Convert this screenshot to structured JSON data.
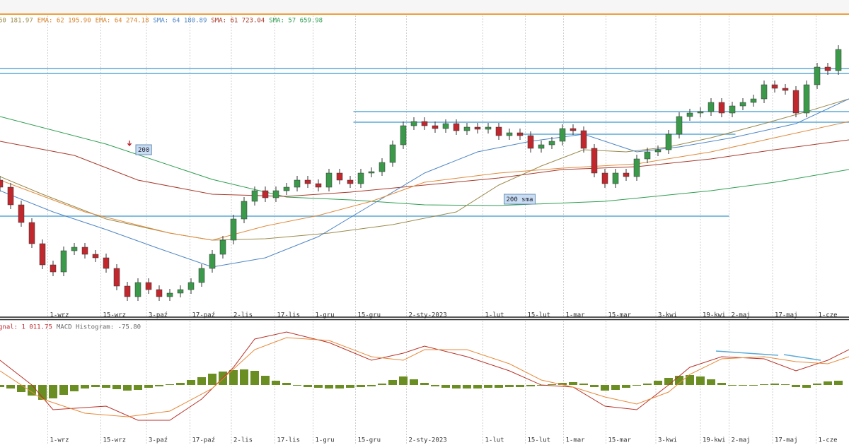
{
  "chart_data": [
    {
      "type": "candlestick",
      "legend": [
        {
          "text": "60 181.97",
          "color": "#9a8a4a"
        },
        {
          "text": "EMA: 62 195.90",
          "color": "#d9822b"
        },
        {
          "text": "EMA: 64 274.18",
          "color": "#d9822b"
        },
        {
          "text": "SMA: 64 180.89",
          "color": "#4f86c6"
        },
        {
          "text": "SMA: 61 723.04",
          "color": "#a83a2a"
        },
        {
          "text": "SMA: 57 659.98",
          "color": "#2e9e52"
        }
      ],
      "xlim": [
        0,
        80
      ],
      "ylim": [
        46000,
        68000
      ],
      "xticks": [
        {
          "value": 4.5,
          "label": "1-wrz"
        },
        {
          "value": 9.5,
          "label": "15-wrz"
        },
        {
          "value": 13.8,
          "label": "3-paź"
        },
        {
          "value": 17.9,
          "label": "17-paź"
        },
        {
          "value": 21.8,
          "label": "2-lis"
        },
        {
          "value": 25.9,
          "label": "17-lis"
        },
        {
          "value": 29.5,
          "label": "1-gru"
        },
        {
          "value": 33.5,
          "label": "15-gru"
        },
        {
          "value": 38.3,
          "label": "2-sty-2023"
        },
        {
          "value": 45.5,
          "label": "1-lut"
        },
        {
          "value": 49.5,
          "label": "15-lut"
        },
        {
          "value": 53.1,
          "label": "1-mar"
        },
        {
          "value": 57.1,
          "label": "15-mar"
        },
        {
          "value": 61.8,
          "label": "3-kwi"
        },
        {
          "value": 66,
          "label": "19-kwi"
        },
        {
          "value": 68.7,
          "label": "2-maj"
        },
        {
          "value": 72.8,
          "label": "17-maj"
        },
        {
          "value": 76.9,
          "label": "1-cze"
        }
      ],
      "grid": true,
      "up_color": "#3a9a4a",
      "down_color": "#c0282d",
      "x": [
        0,
        1,
        2,
        3,
        4,
        5,
        6,
        7,
        8,
        9,
        10,
        11,
        12,
        13,
        14,
        15,
        16,
        17,
        18,
        19,
        20,
        21,
        22,
        23,
        24,
        25,
        26,
        27,
        28,
        29,
        30,
        31,
        32,
        33,
        34,
        35,
        36,
        37,
        38,
        39,
        40,
        41,
        42,
        43,
        44,
        45,
        46,
        47,
        48,
        49,
        50,
        51,
        52,
        53,
        54,
        55,
        56,
        57,
        58,
        59,
        60,
        61,
        62,
        63,
        64,
        65,
        66,
        67,
        68,
        69,
        70,
        71,
        72,
        73,
        74,
        75,
        76,
        77,
        78,
        79
      ],
      "open": [
        55250,
        54750,
        53500,
        52250,
        50750,
        49250,
        48750,
        50250,
        50500,
        50000,
        49750,
        49000,
        47750,
        47000,
        48000,
        47500,
        47000,
        47250,
        47500,
        48000,
        49000,
        50000,
        51000,
        52500,
        53750,
        54500,
        54000,
        54500,
        54750,
        55250,
        55000,
        54750,
        55750,
        55250,
        55000,
        55750,
        55850,
        56500,
        57750,
        59100,
        59400,
        59100,
        58900,
        59250,
        58750,
        59000,
        58850,
        59000,
        58400,
        58600,
        58400,
        57500,
        57750,
        58000,
        58900,
        58750,
        57500,
        55750,
        55000,
        55750,
        55500,
        56750,
        57250,
        57400,
        58500,
        59750,
        60000,
        60100,
        60750,
        60000,
        60500,
        60750,
        61000,
        62000,
        61750,
        61600,
        60000,
        62000,
        63250,
        63000
      ],
      "high": [
        55550,
        55050,
        53800,
        52550,
        51050,
        49550,
        50550,
        50800,
        50800,
        50300,
        50050,
        49300,
        48050,
        48300,
        48300,
        47800,
        47550,
        47800,
        48300,
        49300,
        50300,
        51300,
        52800,
        54050,
        54800,
        54800,
        54800,
        55050,
        55550,
        55550,
        55300,
        56050,
        56050,
        55550,
        56050,
        56150,
        56800,
        58050,
        59400,
        59700,
        59700,
        59400,
        59550,
        59550,
        59300,
        59300,
        59300,
        59300,
        58900,
        58900,
        58700,
        58050,
        58300,
        59200,
        59200,
        59050,
        57800,
        56050,
        56050,
        56050,
        57050,
        57550,
        57700,
        58800,
        60050,
        60300,
        60400,
        61050,
        61050,
        60800,
        61050,
        61300,
        62300,
        62300,
        62050,
        61900,
        62300,
        63550,
        63550,
        64800
      ],
      "low": [
        54450,
        53200,
        51950,
        50450,
        48950,
        48450,
        48450,
        49950,
        49700,
        49450,
        48700,
        47450,
        46700,
        46700,
        47200,
        46700,
        46700,
        46950,
        47200,
        47700,
        48700,
        49700,
        50700,
        52200,
        53450,
        53700,
        53700,
        54200,
        54450,
        54700,
        54450,
        54450,
        54950,
        54700,
        54700,
        55450,
        55550,
        56200,
        57450,
        58800,
        58800,
        58600,
        58600,
        58450,
        58450,
        58550,
        58550,
        58100,
        58100,
        58100,
        57200,
        57200,
        57450,
        57700,
        58450,
        57200,
        55450,
        54700,
        54700,
        55200,
        55200,
        56450,
        56950,
        57100,
        58200,
        59450,
        59700,
        59800,
        59700,
        59700,
        60200,
        60450,
        60700,
        61450,
        61300,
        59700,
        59700,
        61700,
        62700,
        62700
      ],
      "close": [
        54750,
        53500,
        52250,
        50750,
        49250,
        48750,
        50250,
        50500,
        50000,
        49750,
        49000,
        47750,
        47000,
        48000,
        47500,
        47000,
        47250,
        47500,
        48000,
        49000,
        50000,
        51000,
        52500,
        53750,
        54500,
        54000,
        54500,
        54750,
        55250,
        55000,
        54750,
        55750,
        55250,
        55000,
        55750,
        55850,
        56500,
        57750,
        59100,
        59400,
        59100,
        58900,
        59250,
        58750,
        59000,
        58850,
        59000,
        58400,
        58600,
        58400,
        57500,
        57750,
        58000,
        58900,
        58750,
        57500,
        55750,
        55000,
        55750,
        55500,
        56750,
        57250,
        57400,
        58500,
        59750,
        60000,
        60100,
        60750,
        60000,
        60500,
        60750,
        61000,
        62000,
        61750,
        61600,
        60000,
        62000,
        63250,
        63000,
        64500
      ],
      "series": [
        {
          "color": "#2e9e52",
          "x": [
            0,
            10,
            20,
            27,
            33,
            40,
            47,
            57,
            67,
            73,
            80
          ],
          "values": [
            59750,
            57800,
            55300,
            54050,
            53850,
            53500,
            53450,
            53750,
            54500,
            55100,
            56000
          ]
        },
        {
          "color": "#a83a2a",
          "x": [
            0,
            7,
            13,
            20,
            27,
            33,
            40,
            47,
            53,
            60,
            67,
            73,
            80
          ],
          "values": [
            58000,
            57000,
            55250,
            54250,
            54100,
            54400,
            54900,
            55400,
            56000,
            56200,
            56750,
            57400,
            58100
          ]
        },
        {
          "color": "#9a8a4a",
          "x": [
            0,
            4,
            10,
            16,
            20,
            25,
            31,
            37,
            43,
            47,
            51,
            55,
            59,
            63,
            67,
            72,
            76,
            80
          ],
          "values": [
            55500,
            54250,
            52500,
            51500,
            51000,
            51100,
            51500,
            52100,
            53000,
            54900,
            56250,
            57400,
            57250,
            57600,
            58250,
            59250,
            60100,
            61000
          ]
        },
        {
          "color": "#4f86c6",
          "x": [
            0,
            5,
            10,
            15,
            20,
            25,
            30,
            35,
            40,
            45,
            50,
            55,
            60,
            64,
            69,
            75,
            80
          ],
          "values": [
            54500,
            53000,
            51750,
            50400,
            49100,
            49750,
            51250,
            53500,
            55750,
            57250,
            58000,
            58500,
            57250,
            57600,
            58250,
            59250,
            61000
          ]
        },
        {
          "color": "#e08a3c",
          "x": [
            0,
            8,
            16,
            20,
            25,
            30,
            35,
            40,
            47,
            53,
            60,
            67,
            73,
            80
          ],
          "values": [
            55250,
            53000,
            51500,
            51000,
            52000,
            52750,
            53750,
            55100,
            55750,
            56100,
            56400,
            57250,
            58250,
            59400
          ]
        }
      ],
      "levels_color": "#5aaad6",
      "levels": [
        {
          "value": 63150,
          "from": 0,
          "to": 80
        },
        {
          "value": 62800,
          "from": 0,
          "to": 80
        },
        {
          "value": 60100,
          "from": 33.3,
          "to": 80
        },
        {
          "value": 59350,
          "from": 33.3,
          "to": 80
        },
        {
          "value": 58500,
          "from": 49.3,
          "to": 69.3
        },
        {
          "value": 52700,
          "from": 0,
          "to": 68.7
        }
      ],
      "annotations": [
        {
          "text": "200",
          "x": 13,
          "y": 57400
        },
        {
          "text": "200 sma",
          "x": 47.7,
          "y": 53900
        }
      ]
    },
    {
      "type": "macd",
      "legend": [
        {
          "text": "gnal: 1 011.75",
          "color": "#c0282d"
        },
        {
          "text": "MACD Histogram: -75.80",
          "color": "#666666"
        }
      ],
      "ylim": [
        -1600,
        1800
      ],
      "histogram": {
        "color": "#6b8e23",
        "x": [
          0,
          1,
          2,
          3,
          4,
          5,
          6,
          7,
          8,
          9,
          10,
          11,
          12,
          13,
          14,
          15,
          16,
          17,
          18,
          19,
          20,
          21,
          22,
          23,
          24,
          25,
          26,
          27,
          28,
          29,
          30,
          31,
          32,
          33,
          34,
          35,
          36,
          37,
          38,
          39,
          40,
          41,
          42,
          43,
          44,
          45,
          46,
          47,
          48,
          49,
          50,
          51,
          52,
          53,
          54,
          55,
          56,
          57,
          58,
          59,
          60,
          61,
          62,
          63,
          64,
          65,
          66,
          67,
          68,
          69,
          70,
          71,
          72,
          73,
          74,
          75,
          76,
          77,
          78,
          79
        ],
        "values": [
          -60,
          -100,
          -200,
          -300,
          -420,
          -380,
          -280,
          -180,
          -100,
          -60,
          -80,
          -120,
          -160,
          -140,
          -80,
          -40,
          20,
          60,
          140,
          220,
          320,
          380,
          420,
          440,
          400,
          260,
          120,
          60,
          -20,
          -60,
          -80,
          -100,
          -100,
          -80,
          -60,
          -40,
          40,
          140,
          240,
          160,
          60,
          -40,
          -80,
          -100,
          -100,
          -100,
          -80,
          -80,
          -60,
          -60,
          -40,
          -20,
          20,
          60,
          80,
          40,
          -60,
          -160,
          -140,
          -80,
          -20,
          40,
          120,
          200,
          260,
          280,
          240,
          160,
          60,
          -20,
          -20,
          -20,
          20,
          40,
          20,
          -60,
          -80,
          40,
          100,
          120
        ]
      },
      "series": [
        {
          "color": "#b83228",
          "x": [
            0,
            3,
            5,
            10,
            13,
            16,
            19,
            22,
            24,
            27,
            31,
            35,
            38,
            40,
            44,
            48,
            51,
            54,
            57,
            60,
            63,
            65,
            68,
            72,
            75,
            78,
            80
          ],
          "values": [
            700,
            0,
            -700,
            -600,
            -1000,
            -1000,
            -400,
            500,
            1300,
            1500,
            1200,
            700,
            900,
            1100,
            800,
            400,
            0,
            -60,
            -600,
            -700,
            0,
            500,
            800,
            740,
            400,
            700,
            1000
          ]
        },
        {
          "color": "#e8893a",
          "x": [
            0,
            4,
            8,
            12,
            16,
            20,
            24,
            27,
            31,
            35,
            38,
            40,
            44,
            48,
            51,
            54,
            57,
            60,
            63,
            65,
            68,
            72,
            75,
            78,
            80
          ],
          "values": [
            400,
            -400,
            -800,
            -900,
            -740,
            -100,
            1000,
            1340,
            1260,
            800,
            700,
            1000,
            1000,
            600,
            140,
            -60,
            -340,
            -540,
            -200,
            300,
            740,
            800,
            660,
            600,
            800
          ]
        }
      ]
    }
  ]
}
